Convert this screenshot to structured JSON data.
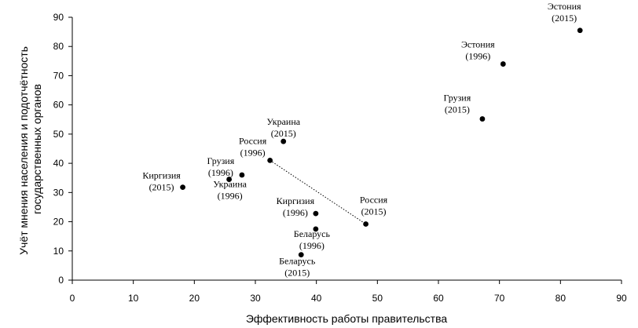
{
  "chart_data": {
    "type": "scatter",
    "title": "",
    "xlabel": "Эффективность работы правительства",
    "ylabel": "Учёт мнения населения и подотчётность государственных органов",
    "xlim": [
      0,
      90
    ],
    "ylim": [
      0,
      90
    ],
    "xticks": [
      0,
      10,
      20,
      30,
      40,
      50,
      60,
      70,
      80,
      90
    ],
    "yticks": [
      0,
      10,
      20,
      30,
      40,
      50,
      60,
      70,
      80,
      90
    ],
    "grid": false,
    "legend": "none",
    "points": [
      {
        "name": "Эстония",
        "year": "(2015)",
        "x": 83.2,
        "y": 85.5
      },
      {
        "name": "Эстония",
        "year": "(1996)",
        "x": 70.6,
        "y": 74.0
      },
      {
        "name": "Грузия",
        "year": "(2015)",
        "x": 67.2,
        "y": 55.2
      },
      {
        "name": "Украина",
        "year": "(2015)",
        "x": 34.6,
        "y": 47.5
      },
      {
        "name": "Россия",
        "year": "(1996)",
        "x": 32.4,
        "y": 41.0
      },
      {
        "name": "Грузия",
        "year": "(1996)",
        "x": 27.8,
        "y": 36.0
      },
      {
        "name": "Украина",
        "year": "(1996)",
        "x": 25.7,
        "y": 34.5
      },
      {
        "name": "Киргизия",
        "year": "(2015)",
        "x": 18.1,
        "y": 31.8
      },
      {
        "name": "Киргизия",
        "year": "(1996)",
        "x": 39.9,
        "y": 22.8
      },
      {
        "name": "Россия",
        "year": "(2015)",
        "x": 48.1,
        "y": 19.2
      },
      {
        "name": "Беларусь",
        "year": "(1996)",
        "x": 39.9,
        "y": 17.5
      },
      {
        "name": "Беларусь",
        "year": "(2015)",
        "x": 37.5,
        "y": 8.7
      }
    ],
    "connector": {
      "from": 4,
      "to": 9,
      "style": "dotted"
    }
  }
}
